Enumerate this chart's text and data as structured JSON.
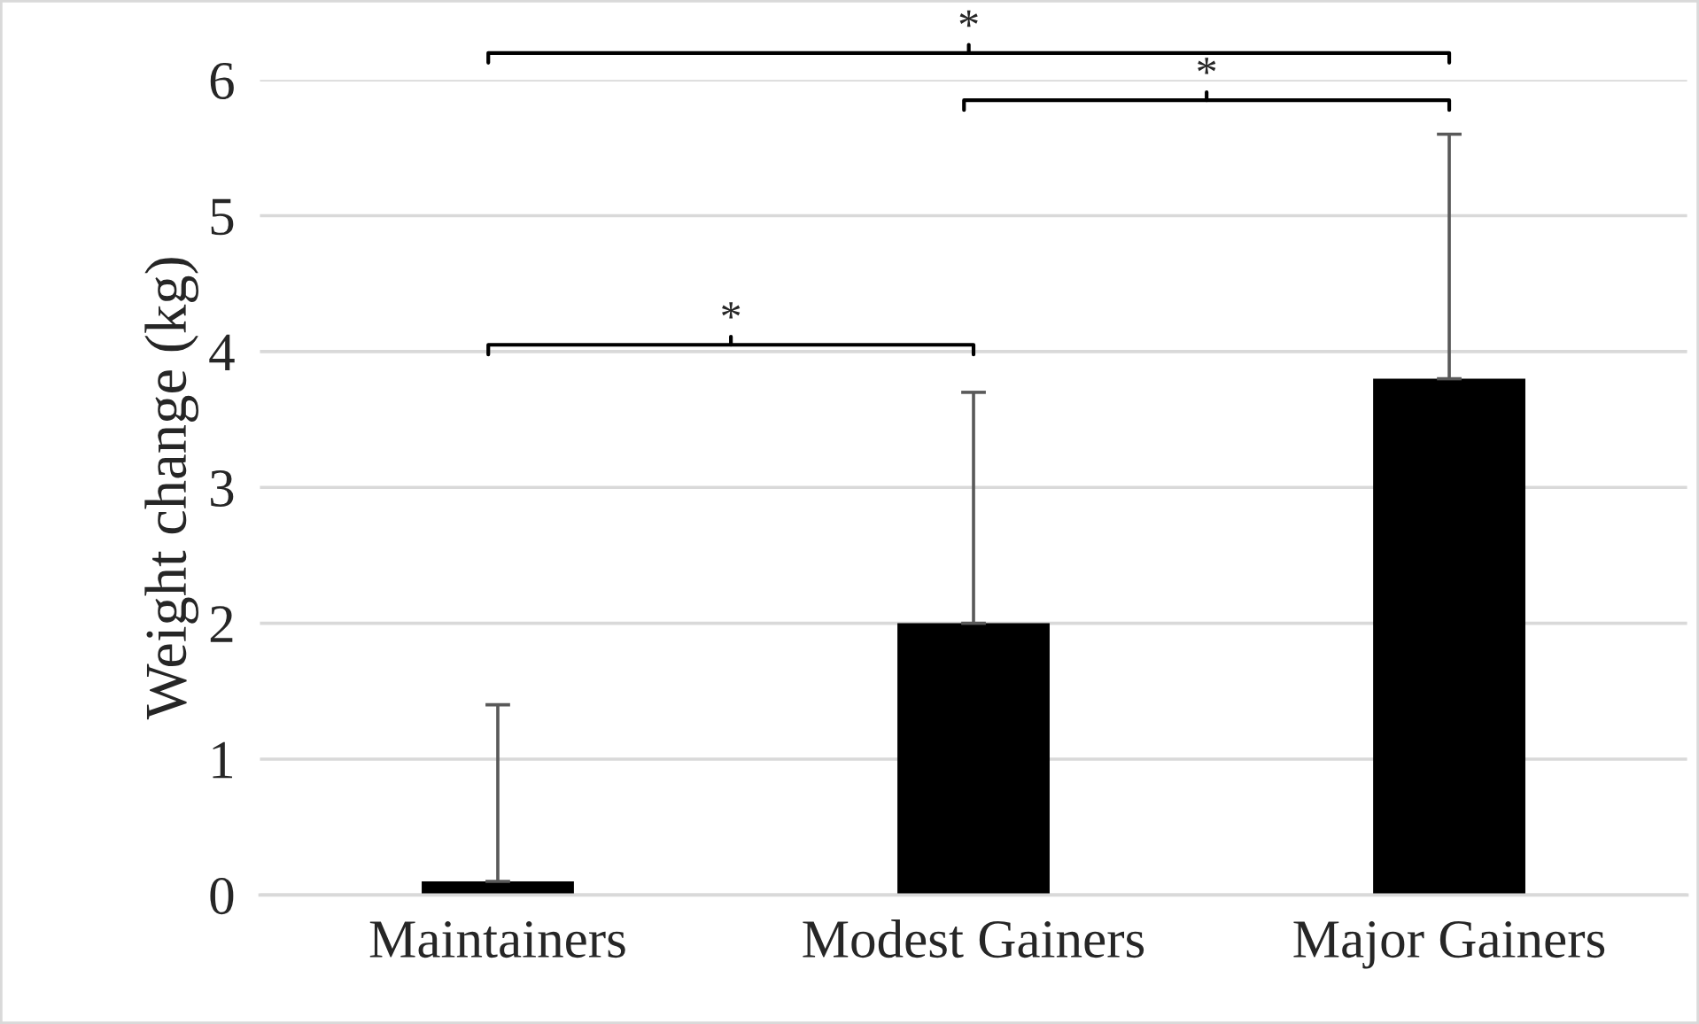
{
  "chart_data": {
    "type": "bar",
    "ylabel": "Weight change (kg)",
    "categories": [
      "Maintainers",
      "Modest Gainers",
      "Major Gainers"
    ],
    "values": [
      0.1,
      2.0,
      3.8
    ],
    "color": "#000000",
    "errors": [
      [
        0.1,
        1.4
      ],
      [
        2.0,
        3.7
      ],
      [
        3.8,
        5.6
      ]
    ],
    "ylim": [
      0,
      6
    ],
    "yticks": [
      0,
      1,
      2,
      3,
      4,
      5,
      6
    ],
    "grid": "y",
    "annotations": [
      "*",
      "*",
      "*"
    ]
  }
}
